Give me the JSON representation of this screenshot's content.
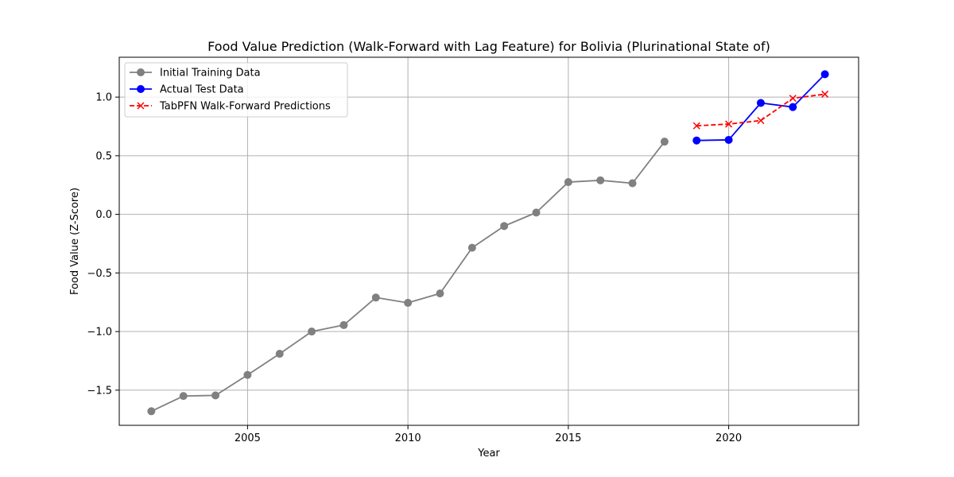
{
  "chart_data": {
    "type": "line",
    "title": "Food Value Prediction (Walk-Forward with Lag Feature) for Bolivia (Plurinational State of)",
    "xlabel": "Year",
    "ylabel": "Food Value (Z-Score)",
    "xlim": [
      2001.0,
      2024.05
    ],
    "ylim": [
      -1.8,
      1.34
    ],
    "xticks": [
      2005,
      2010,
      2015,
      2020
    ],
    "xtick_labels": [
      "2005",
      "2010",
      "2015",
      "2020"
    ],
    "yticks": [
      -1.5,
      -1.0,
      -0.5,
      0.0,
      0.5,
      1.0
    ],
    "ytick_labels": [
      "−1.5",
      "−1.0",
      "−0.5",
      "0.0",
      "0.5",
      "1.0"
    ],
    "grid": true,
    "legend_position": "top-left",
    "series": [
      {
        "name": "Initial Training Data",
        "color": "#808080",
        "marker": "circle",
        "line_style": "solid",
        "x": [
          2002,
          2003,
          2004,
          2005,
          2006,
          2007,
          2008,
          2009,
          2010,
          2011,
          2012,
          2013,
          2014,
          2015,
          2016,
          2017,
          2018
        ],
        "y": [
          -1.68,
          -1.55,
          -1.545,
          -1.37,
          -1.19,
          -1.0,
          -0.945,
          -0.71,
          -0.755,
          -0.675,
          -0.285,
          -0.1,
          0.015,
          0.275,
          0.29,
          0.265,
          0.62
        ]
      },
      {
        "name": "Actual Test Data",
        "color": "#0000ff",
        "marker": "circle",
        "line_style": "solid",
        "x": [
          2019,
          2020,
          2021,
          2022,
          2023
        ],
        "y": [
          0.63,
          0.635,
          0.95,
          0.915,
          1.195
        ]
      },
      {
        "name": "TabPFN Walk-Forward Predictions",
        "color": "#ff0000",
        "marker": "x",
        "line_style": "dashed",
        "x": [
          2019,
          2020,
          2021,
          2022,
          2023
        ],
        "y": [
          0.755,
          0.77,
          0.8,
          0.99,
          1.025
        ]
      }
    ]
  }
}
